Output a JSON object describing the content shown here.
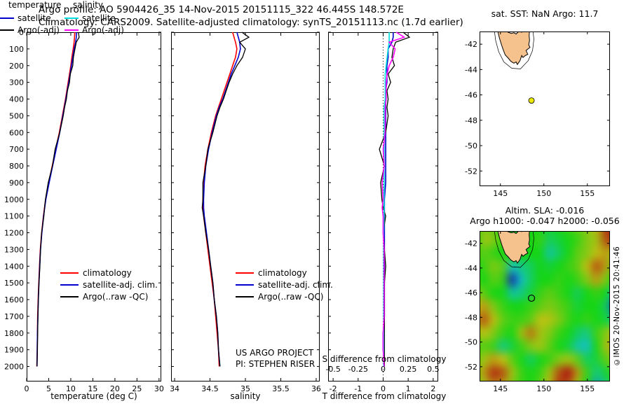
{
  "header": {
    "line1": "Argo profile: AO 5904426_35 14-Nov-2015 20151115_322 46.445S 148.572E",
    "line2": "Climatology: CARS2009. Satellite-adjusted climatology: synTS_20151113.nc (1.7d earlier)"
  },
  "copyright": "©IMOS 20-Nov-2015 20:41:46",
  "colors": {
    "climatology": "#ff0000",
    "satellite_adjusted": "#0000cc",
    "argo": "#000000",
    "satellite_salinity": "#00dede",
    "argo_salinity": "#ff00ff",
    "land": "#f5c28e",
    "marker_fill": "#e8e800"
  },
  "geo": {
    "tasmania": [
      [
        144.65,
        -40.78
      ],
      [
        144.9,
        -40.68
      ],
      [
        145.25,
        -40.82
      ],
      [
        145.55,
        -40.88
      ],
      [
        145.85,
        -41.05
      ],
      [
        146.25,
        -41.15
      ],
      [
        146.55,
        -41.1
      ],
      [
        146.8,
        -41.2
      ],
      [
        147.1,
        -41.0
      ],
      [
        147.45,
        -41.05
      ],
      [
        147.75,
        -40.88
      ],
      [
        148.05,
        -40.78
      ],
      [
        148.35,
        -40.95
      ],
      [
        148.3,
        -41.3
      ],
      [
        148.35,
        -41.7
      ],
      [
        148.25,
        -42.05
      ],
      [
        148.4,
        -42.25
      ],
      [
        147.95,
        -42.5
      ],
      [
        148.15,
        -42.8
      ],
      [
        147.85,
        -42.9
      ],
      [
        147.6,
        -43.05
      ],
      [
        147.45,
        -42.9
      ],
      [
        147.25,
        -43.3
      ],
      [
        146.95,
        -43.6
      ],
      [
        146.8,
        -43.4
      ],
      [
        146.55,
        -43.5
      ],
      [
        146.2,
        -43.35
      ],
      [
        145.9,
        -43.1
      ],
      [
        145.55,
        -42.85
      ],
      [
        145.3,
        -42.4
      ],
      [
        145.15,
        -42.1
      ],
      [
        144.9,
        -41.55
      ],
      [
        144.75,
        -41.15
      ]
    ],
    "shelf_contour": [
      [
        144.4,
        -40.5
      ],
      [
        145.5,
        -40.45
      ],
      [
        146.8,
        -40.55
      ],
      [
        147.9,
        -40.45
      ],
      [
        148.7,
        -40.7
      ],
      [
        148.85,
        -41.6
      ],
      [
        148.7,
        -42.5
      ],
      [
        148.2,
        -43.3
      ],
      [
        147.3,
        -43.95
      ],
      [
        146.3,
        -43.9
      ],
      [
        145.4,
        -43.4
      ],
      [
        144.8,
        -42.6
      ],
      [
        144.45,
        -41.7
      ],
      [
        144.3,
        -40.9
      ]
    ]
  },
  "chart_data": [
    {
      "id": "temperature-profile",
      "type": "line",
      "xlabel": "temperature (deg C)",
      "xlim": [
        0,
        30.5
      ],
      "xticks": [
        0,
        5,
        10,
        15,
        20,
        25,
        30
      ],
      "ylim": [
        0,
        2090
      ],
      "yticks": [
        0,
        100,
        200,
        300,
        400,
        500,
        600,
        700,
        800,
        900,
        1000,
        1100,
        1200,
        1300,
        1400,
        1500,
        1600,
        1700,
        1800,
        1900,
        2000
      ],
      "depths": [
        0,
        30,
        60,
        100,
        150,
        200,
        250,
        300,
        350,
        400,
        450,
        500,
        600,
        700,
        800,
        900,
        1000,
        1050,
        1100,
        1200,
        1300,
        1400,
        1500,
        1600,
        1700,
        1800,
        1900,
        2000
      ],
      "series": [
        {
          "name": "climatology",
          "color": "#ff0000",
          "values": [
            10.9,
            10.85,
            10.75,
            10.55,
            10.25,
            10.0,
            9.7,
            9.4,
            9.1,
            8.8,
            8.45,
            8.1,
            7.4,
            6.6,
            5.8,
            5.0,
            4.3,
            4.05,
            3.8,
            3.4,
            3.1,
            2.9,
            2.75,
            2.6,
            2.5,
            2.45,
            2.4,
            2.3
          ]
        },
        {
          "name": "satellite-adj. clim.",
          "color": "#0000cc",
          "values": [
            11.3,
            11.25,
            11.1,
            10.75,
            10.45,
            10.15,
            9.85,
            9.55,
            9.2,
            8.9,
            8.55,
            8.2,
            7.5,
            6.7,
            5.9,
            5.1,
            4.35,
            4.1,
            3.85,
            3.45,
            3.15,
            2.95,
            2.8,
            2.65,
            2.55,
            2.45,
            2.4,
            2.35
          ]
        },
        {
          "name": "Argo(..raw -QC)",
          "color": "#000000",
          "values": [
            11.7,
            11.9,
            11.25,
            10.95,
            10.6,
            10.45,
            9.9,
            9.7,
            9.25,
            9.0,
            8.6,
            8.3,
            7.5,
            6.45,
            5.85,
            4.9,
            4.25,
            4.05,
            3.9,
            3.4,
            3.15,
            3.0,
            2.8,
            2.65,
            2.55,
            2.5,
            2.45,
            2.35
          ]
        }
      ]
    },
    {
      "id": "salinity-profile",
      "type": "line",
      "xlabel": "salinity",
      "xlim": [
        33.95,
        36.05
      ],
      "xticks": [
        34,
        34.5,
        35,
        35.5,
        36
      ],
      "ylim": [
        0,
        2090
      ],
      "yticks": [
        0,
        100,
        200,
        300,
        400,
        500,
        600,
        700,
        800,
        900,
        1000,
        1100,
        1200,
        1300,
        1400,
        1500,
        1600,
        1700,
        1800,
        1900,
        2000
      ],
      "depths": [
        0,
        30,
        60,
        100,
        150,
        200,
        250,
        300,
        350,
        400,
        450,
        500,
        600,
        700,
        800,
        900,
        1000,
        1050,
        1100,
        1200,
        1300,
        1400,
        1500,
        1600,
        1700,
        1800,
        1900,
        2000
      ],
      "annotations": [
        "US ARGO PROJECT",
        "PI: STEPHEN RISER"
      ],
      "series": [
        {
          "name": "climatology",
          "color": "#ff0000",
          "values": [
            34.82,
            34.84,
            34.86,
            34.88,
            34.86,
            34.82,
            34.78,
            34.74,
            34.7,
            34.66,
            34.62,
            34.58,
            34.52,
            34.47,
            34.43,
            34.41,
            34.4,
            34.4,
            34.41,
            34.44,
            34.47,
            34.5,
            34.53,
            34.56,
            34.58,
            34.6,
            34.62,
            34.63
          ]
        },
        {
          "name": "satellite-adj. clim.",
          "color": "#0000cc",
          "values": [
            34.88,
            34.9,
            34.92,
            34.93,
            34.9,
            34.85,
            34.8,
            34.76,
            34.72,
            34.68,
            34.63,
            34.59,
            34.53,
            34.48,
            34.44,
            34.42,
            34.41,
            34.41,
            34.42,
            34.45,
            34.48,
            34.51,
            34.54,
            34.56,
            34.59,
            34.61,
            34.62,
            34.64
          ]
        },
        {
          "name": "Argo(..raw -QC)",
          "color": "#000000",
          "values": [
            34.95,
            35.05,
            34.92,
            35.0,
            34.96,
            34.88,
            34.82,
            34.77,
            34.73,
            34.69,
            34.64,
            34.6,
            34.54,
            34.47,
            34.44,
            34.4,
            34.4,
            34.39,
            34.41,
            34.44,
            34.48,
            34.51,
            34.54,
            34.56,
            34.59,
            34.61,
            34.62,
            34.64
          ]
        }
      ]
    },
    {
      "id": "difference-profile",
      "type": "line",
      "xlabel": "T difference from climatology",
      "xlim": [
        -2.2,
        2.2
      ],
      "xticks": [
        -2,
        -1,
        0,
        1,
        2
      ],
      "ylim": [
        0,
        2090
      ],
      "yticks": [
        0,
        100,
        200,
        300,
        400,
        500,
        600,
        700,
        800,
        900,
        1000,
        1100,
        1200,
        1300,
        1400,
        1500,
        1600,
        1700,
        1800,
        1900,
        2000
      ],
      "s_axis": {
        "label": "S difference from climatology",
        "lim": [
          -0.55,
          0.55
        ],
        "ticks": [
          -0.5,
          -0.25,
          0,
          0.25,
          0.5
        ]
      },
      "depths": [
        0,
        30,
        60,
        100,
        150,
        200,
        250,
        300,
        350,
        400,
        450,
        500,
        600,
        700,
        800,
        900,
        1000,
        1050,
        1100,
        1200,
        1300,
        1400,
        1500,
        1600,
        1700,
        1800,
        1900,
        2000
      ],
      "legend_groups": [
        {
          "header": "temperature",
          "entries": [
            "satellite",
            "Argo(-adj)"
          ]
        },
        {
          "header": "salinity",
          "entries": [
            "satellite",
            "Argo(-adj)"
          ]
        }
      ],
      "series": [
        {
          "name": "satellite",
          "group": "temperature",
          "axis": "t",
          "color": "#0000cc",
          "values": [
            0.4,
            0.4,
            0.35,
            0.2,
            0.2,
            0.15,
            0.15,
            0.15,
            0.1,
            0.1,
            0.1,
            0.1,
            0.1,
            0.1,
            0.1,
            0.1,
            0.05,
            0.05,
            0.05,
            0.05,
            0.05,
            0.05,
            0.05,
            0.05,
            0.05,
            0.0,
            0.0,
            0.05
          ]
        },
        {
          "name": "Argo(-adj)",
          "group": "temperature",
          "axis": "t",
          "color": "#000000",
          "values": [
            0.8,
            1.05,
            0.5,
            0.4,
            0.35,
            0.45,
            0.2,
            0.3,
            0.15,
            0.2,
            0.15,
            0.2,
            0.1,
            -0.15,
            0.05,
            -0.1,
            -0.05,
            0.0,
            0.1,
            0.0,
            0.05,
            0.1,
            0.05,
            0.05,
            0.05,
            0.05,
            0.05,
            0.05
          ]
        },
        {
          "name": "satellite",
          "group": "salinity",
          "axis": "s",
          "color": "#00dede",
          "values": [
            0.06,
            0.06,
            0.06,
            0.05,
            0.04,
            0.03,
            0.02,
            0.02,
            0.02,
            0.02,
            0.01,
            0.01,
            0.01,
            0.01,
            0.01,
            0.01,
            0.01,
            0.01,
            0.01,
            0.005,
            0.005,
            0.005,
            0.005,
            0.005,
            0.005,
            0.005,
            0.005,
            0.005
          ]
        },
        {
          "name": "Argo(-adj)",
          "group": "salinity",
          "axis": "s",
          "color": "#ff00ff",
          "values": [
            0.13,
            0.21,
            0.06,
            0.12,
            0.1,
            0.06,
            0.04,
            0.03,
            0.03,
            0.03,
            0.02,
            0.02,
            0.02,
            0.0,
            0.01,
            -0.01,
            0.0,
            -0.01,
            0.0,
            0.0,
            0.01,
            0.01,
            0.01,
            0.01,
            0.01,
            0.0,
            0.0,
            0.01
          ]
        }
      ]
    },
    {
      "id": "location-map",
      "type": "map",
      "title": "sat. SST: NaN Argo: 11.7",
      "lon_lim": [
        142.6,
        157.6
      ],
      "lat_lim": [
        -53.2,
        -41.0
      ],
      "xticks": [
        145,
        150,
        155
      ],
      "yticks": [
        -42,
        -44,
        -46,
        -48,
        -50,
        -52
      ],
      "marker": {
        "lon": 148.572,
        "lat": -46.445,
        "style": "filled"
      }
    },
    {
      "id": "sla-map",
      "type": "heatmap",
      "title_line1": "Altim. SLA: -0.016",
      "title_line2": "Argo h1000: -0.047 h2000: -0.056",
      "lon_lim": [
        142.6,
        157.6
      ],
      "lat_lim": [
        -53.2,
        -41.0
      ],
      "xticks": [
        145,
        150,
        155
      ],
      "yticks": [
        -42,
        -44,
        -46,
        -48,
        -50,
        -52
      ],
      "marker": {
        "lon": 148.572,
        "lat": -46.445,
        "style": "open"
      },
      "grid": {
        "note": "relative sea-level-anomaly field, -1 (blue) to +1 (red), estimated from colors",
        "cols": 16,
        "rows": 13,
        "values": [
          [
            0.1,
            0.3,
            0.2,
            0.0,
            0.0,
            0.1,
            0.0,
            0.0,
            -0.1,
            0.0,
            0.1,
            0.2,
            0.3,
            0.5,
            0.9,
            1.0
          ],
          [
            0.0,
            0.4,
            0.3,
            0.1,
            0.0,
            0.0,
            0.0,
            0.1,
            -0.2,
            -0.1,
            0.0,
            0.1,
            0.3,
            0.4,
            0.8,
            0.9
          ],
          [
            0.1,
            0.2,
            0.1,
            0.0,
            0.1,
            0.0,
            0.0,
            0.0,
            -0.4,
            -0.2,
            0.0,
            0.2,
            0.3,
            0.5,
            0.6,
            0.4
          ],
          [
            0.0,
            0.1,
            0.3,
            0.2,
            -0.5,
            -0.3,
            -0.2,
            0.0,
            -0.1,
            0.0,
            0.1,
            0.2,
            0.5,
            0.8,
            0.6,
            0.2
          ],
          [
            0.1,
            0.0,
            0.2,
            0.1,
            -0.9,
            -0.5,
            -0.2,
            0.0,
            0.0,
            0.1,
            0.0,
            0.1,
            0.3,
            0.6,
            0.3,
            0.0
          ],
          [
            0.3,
            0.2,
            0.0,
            0.0,
            -0.4,
            -0.3,
            -0.1,
            0.1,
            0.2,
            0.1,
            0.0,
            -0.2,
            0.0,
            0.1,
            0.0,
            -0.5
          ],
          [
            0.5,
            0.6,
            0.3,
            0.1,
            0.0,
            0.0,
            0.1,
            0.2,
            0.3,
            0.2,
            0.1,
            -0.1,
            0.0,
            0.0,
            -0.2,
            -0.8
          ],
          [
            0.6,
            0.8,
            0.5,
            0.2,
            0.1,
            0.1,
            0.2,
            0.5,
            0.45,
            0.3,
            0.1,
            0.0,
            0.1,
            0.0,
            -0.1,
            -0.3
          ],
          [
            0.3,
            0.5,
            0.3,
            0.1,
            0.0,
            0.4,
            0.7,
            0.4,
            0.3,
            0.1,
            0.0,
            -0.2,
            -0.3,
            0.1,
            0.3,
            0.5
          ],
          [
            0.1,
            0.2,
            0.1,
            -0.3,
            -0.1,
            0.1,
            0.3,
            0.4,
            0.2,
            0.0,
            -0.1,
            -0.4,
            -0.5,
            0.0,
            0.4,
            0.6
          ],
          [
            0.2,
            0.4,
            0.6,
            0.5,
            0.2,
            0.0,
            -0.2,
            0.0,
            0.1,
            0.3,
            0.4,
            0.2,
            -0.2,
            -0.1,
            0.2,
            0.3
          ],
          [
            0.3,
            0.6,
            0.9,
            0.8,
            0.4,
            0.1,
            0.0,
            0.1,
            0.4,
            0.8,
            1.0,
            0.6,
            0.1,
            -0.3,
            -0.1,
            0.1
          ],
          [
            0.2,
            0.4,
            0.7,
            0.6,
            0.3,
            0.1,
            0.0,
            0.2,
            0.5,
            0.9,
            0.8,
            0.4,
            0.0,
            -0.6,
            -0.3,
            0.0
          ]
        ]
      }
    }
  ]
}
